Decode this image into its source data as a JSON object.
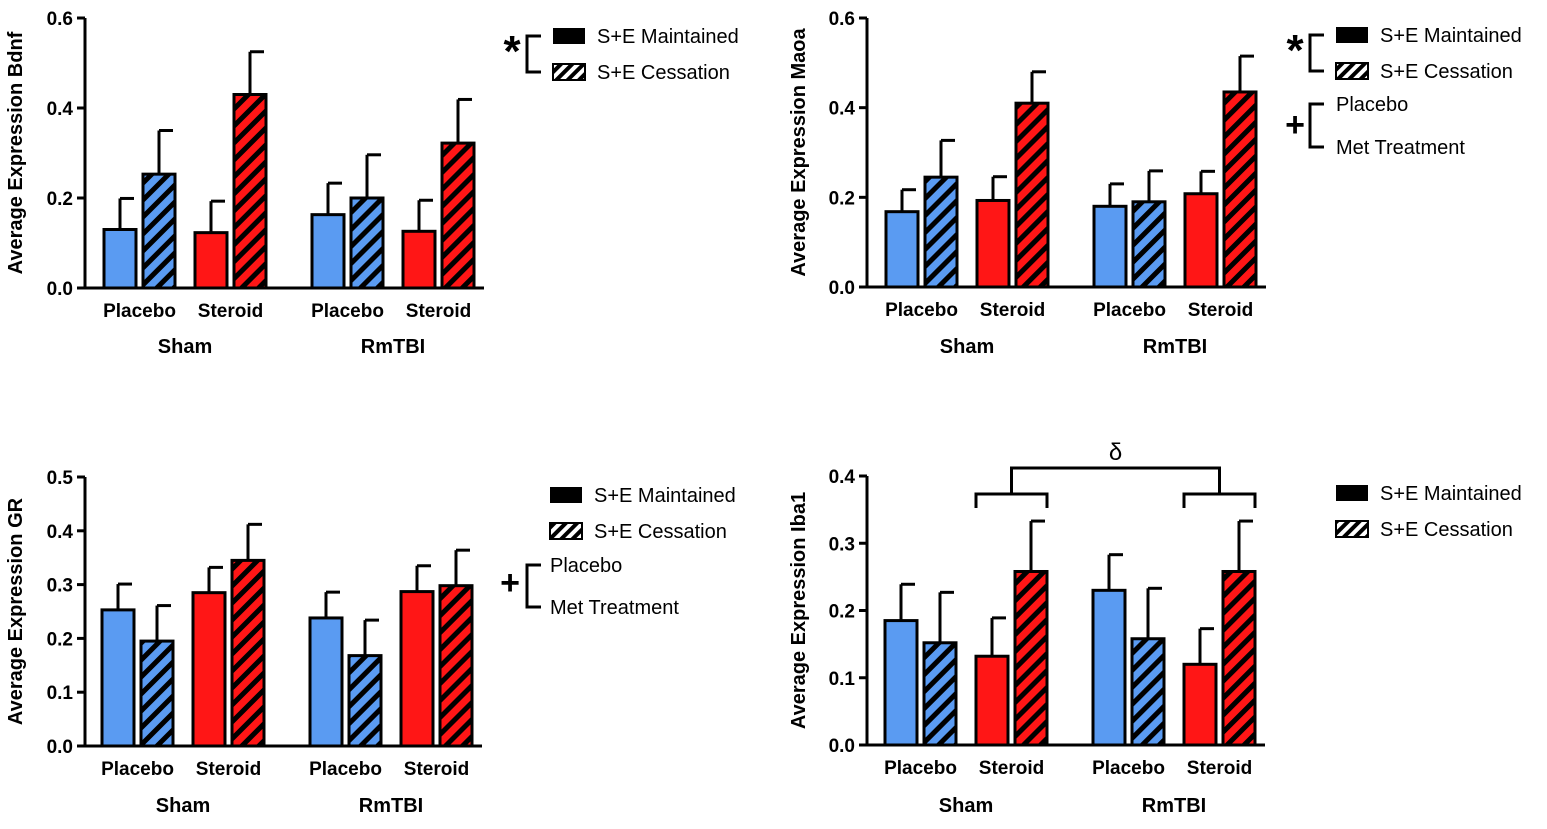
{
  "colors": {
    "placebo_blue": "#5a9bf2",
    "steroid_red": "#ff1616",
    "axis": "#000000",
    "bar_edge": "#000000"
  },
  "chart_data": [
    {
      "type": "bar",
      "panel": "Bdnf",
      "ylabel": "Average Expression Bdnf",
      "ylim": [
        0,
        0.6
      ],
      "yticks": [
        "0.0",
        "0.2",
        "0.4",
        "0.6"
      ],
      "groups": [
        "Sham",
        "RmTBI"
      ],
      "treatments": [
        "Placebo",
        "Steroid",
        "Placebo",
        "Steroid"
      ],
      "series": [
        {
          "name": "S+E Maintained",
          "values": [
            0.13,
            0.123,
            0.163,
            0.126
          ],
          "errors": [
            0.069,
            0.07,
            0.07,
            0.069
          ]
        },
        {
          "name": "S+E Cessation",
          "values": [
            0.253,
            0.43,
            0.2,
            0.322
          ],
          "errors": [
            0.097,
            0.095,
            0.096,
            0.097
          ]
        }
      ],
      "legend": {
        "entries": [
          {
            "label": "S+E Maintained",
            "style": "solid"
          },
          {
            "label": "S+E Cessation",
            "style": "hatched"
          }
        ],
        "brackets": [
          {
            "symbol": "*",
            "from": 0,
            "to": 1
          }
        ]
      },
      "annotations": []
    },
    {
      "type": "bar",
      "panel": "Maoa",
      "ylabel": "Average Expression Maoa",
      "ylim": [
        0,
        0.6
      ],
      "yticks": [
        "0.0",
        "0.2",
        "0.4",
        "0.6"
      ],
      "groups": [
        "Sham",
        "RmTBI"
      ],
      "treatments": [
        "Placebo",
        "Steroid",
        "Placebo",
        "Steroid"
      ],
      "series": [
        {
          "name": "S+E Maintained",
          "values": [
            0.168,
            0.193,
            0.18,
            0.208
          ],
          "errors": [
            0.049,
            0.053,
            0.05,
            0.05
          ]
        },
        {
          "name": "S+E Cessation",
          "values": [
            0.245,
            0.41,
            0.19,
            0.435
          ],
          "errors": [
            0.082,
            0.07,
            0.069,
            0.08
          ]
        }
      ],
      "legend": {
        "entries": [
          {
            "label": "S+E Maintained",
            "style": "solid"
          },
          {
            "label": "S+E Cessation",
            "style": "hatched"
          },
          {
            "label": "Placebo",
            "style": "none"
          },
          {
            "label": "Met Treatment",
            "style": "none"
          }
        ],
        "brackets": [
          {
            "symbol": "*",
            "from": 0,
            "to": 1
          },
          {
            "symbol": "+",
            "from": 2,
            "to": 3
          }
        ]
      },
      "annotations": []
    },
    {
      "type": "bar",
      "panel": "GR",
      "ylabel": "Average Expression GR",
      "ylim": [
        0,
        0.5
      ],
      "yticks": [
        "0.0",
        "0.1",
        "0.2",
        "0.3",
        "0.4",
        "0.5"
      ],
      "groups": [
        "Sham",
        "RmTBI"
      ],
      "treatments": [
        "Placebo",
        "Steroid",
        "Placebo",
        "Steroid"
      ],
      "series": [
        {
          "name": "S+E Maintained",
          "values": [
            0.253,
            0.285,
            0.238,
            0.287
          ],
          "errors": [
            0.048,
            0.047,
            0.048,
            0.048
          ]
        },
        {
          "name": "S+E Cessation",
          "values": [
            0.195,
            0.345,
            0.168,
            0.298
          ],
          "errors": [
            0.066,
            0.067,
            0.066,
            0.066
          ]
        }
      ],
      "legend": {
        "entries": [
          {
            "label": "S+E Maintained",
            "style": "solid"
          },
          {
            "label": "S+E Cessation",
            "style": "hatched"
          },
          {
            "label": "Placebo",
            "style": "none"
          },
          {
            "label": "Met Treatment",
            "style": "none"
          }
        ],
        "brackets": [
          {
            "symbol": "+",
            "from": 2,
            "to": 3
          }
        ]
      },
      "annotations": []
    },
    {
      "type": "bar",
      "panel": "Iba1",
      "ylabel": "Average Expression Iba1",
      "ylim": [
        0,
        0.4
      ],
      "yticks": [
        "0.0",
        "0.1",
        "0.2",
        "0.3",
        "0.4"
      ],
      "groups": [
        "Sham",
        "RmTBI"
      ],
      "treatments": [
        "Placebo",
        "Steroid",
        "Placebo",
        "Steroid"
      ],
      "series": [
        {
          "name": "S+E Maintained",
          "values": [
            0.185,
            0.132,
            0.23,
            0.12
          ],
          "errors": [
            0.054,
            0.057,
            0.053,
            0.053
          ]
        },
        {
          "name": "S+E Cessation",
          "values": [
            0.152,
            0.258,
            0.158,
            0.258
          ],
          "errors": [
            0.075,
            0.075,
            0.075,
            0.075
          ]
        }
      ],
      "legend": {
        "entries": [
          {
            "label": "S+E Maintained",
            "style": "solid"
          },
          {
            "label": "S+E Cessation",
            "style": "hatched"
          }
        ],
        "brackets": []
      },
      "annotations": [
        {
          "symbol": "δ",
          "between": "Sham Steroid vs RmTBI Steroid"
        }
      ]
    }
  ]
}
